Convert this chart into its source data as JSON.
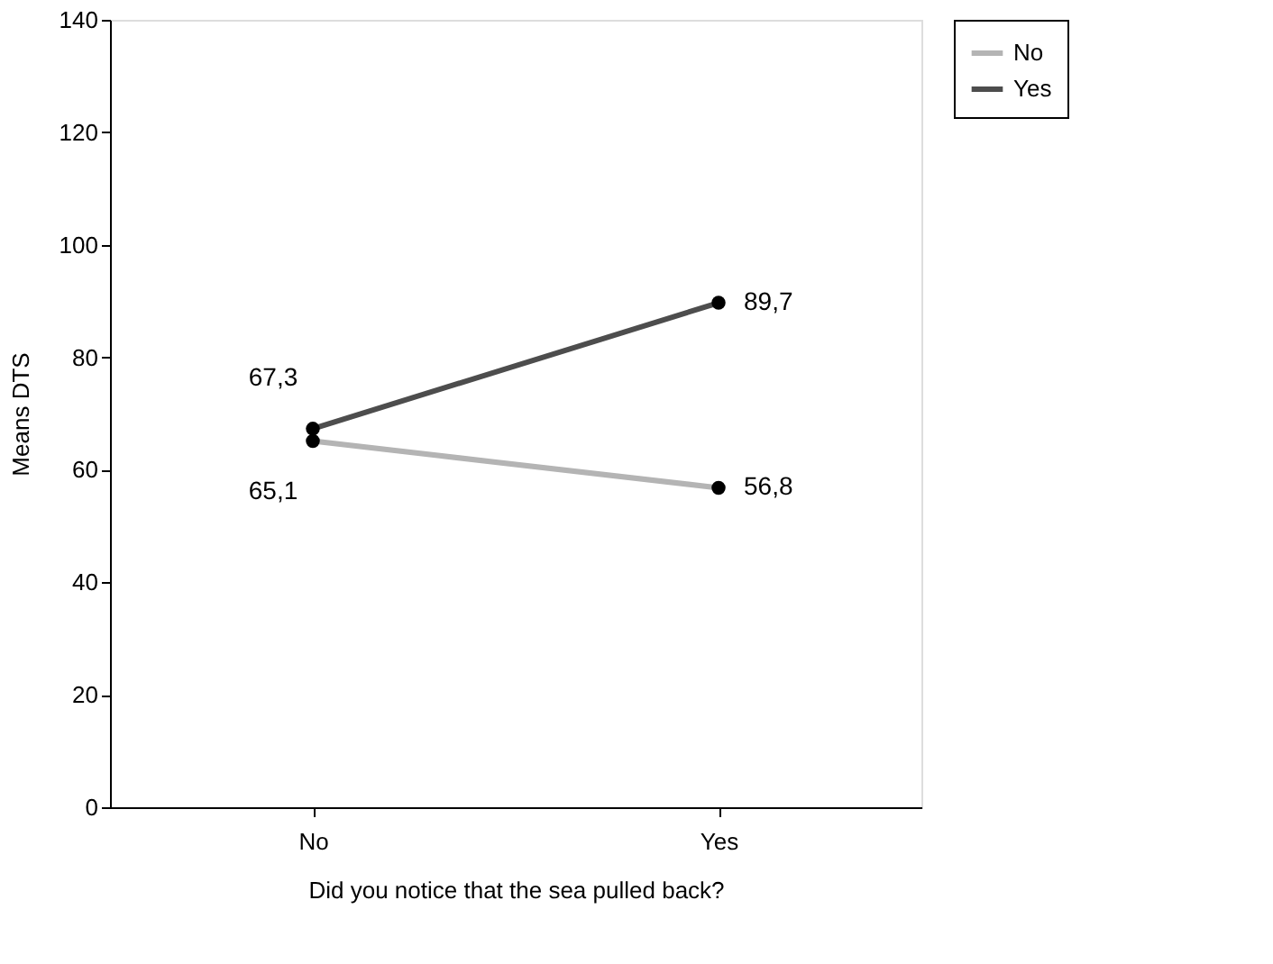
{
  "chart_data": {
    "type": "line",
    "xlabel": "Did you notice that the sea pulled back?",
    "ylabel": "Means DTS",
    "categories": [
      "No",
      "Yes"
    ],
    "series": [
      {
        "name": "No",
        "color": "#b4b4b4",
        "values": [
          65.1,
          56.8
        ],
        "value_labels": [
          "65,1",
          "56,8"
        ]
      },
      {
        "name": "Yes",
        "color": "#4d4d4d",
        "values": [
          67.3,
          89.7
        ],
        "value_labels": [
          "67,3",
          "89,7"
        ]
      }
    ],
    "ylim": [
      0,
      140
    ],
    "yticks": [
      0,
      20,
      40,
      60,
      80,
      100,
      120,
      140
    ],
    "grid": false,
    "legend": "right",
    "marker": "circle",
    "line_style": "solid"
  }
}
